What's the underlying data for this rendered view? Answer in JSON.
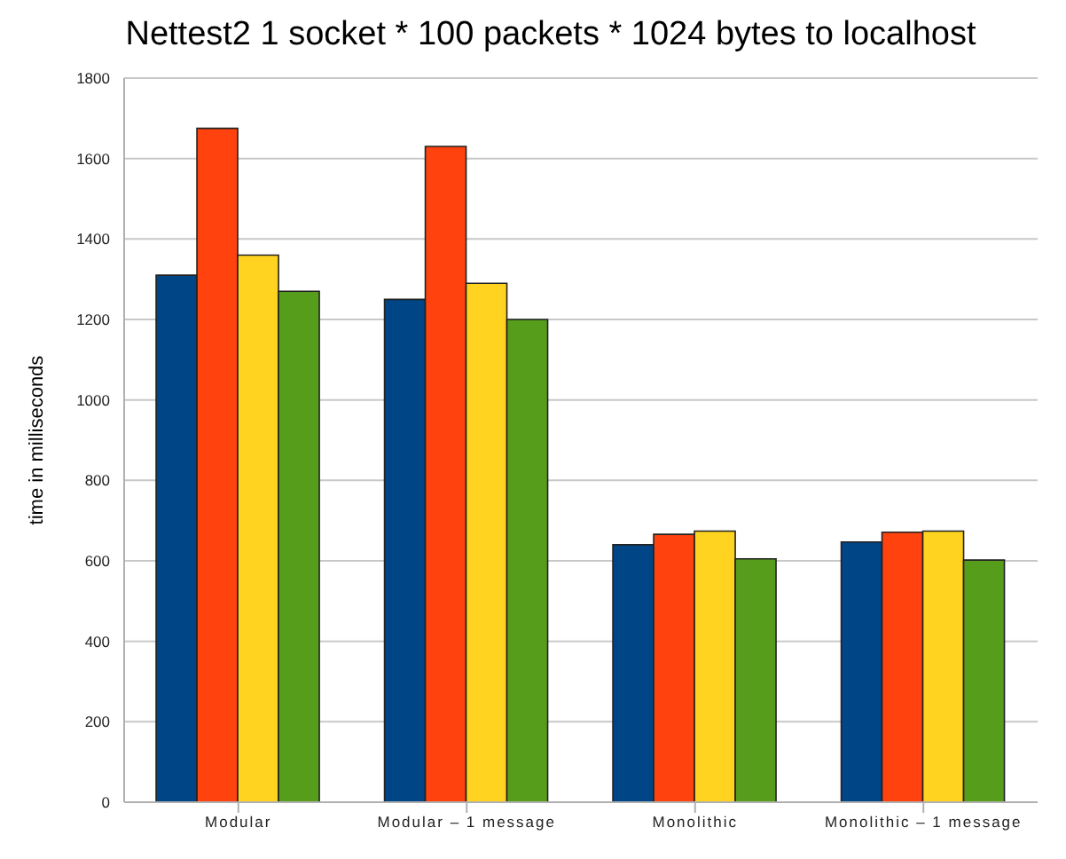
{
  "chart_data": {
    "type": "bar",
    "title": "Nettest2 1 socket * 100 packets * 1024 bytes to localhost",
    "ylabel": "time in milliseconds",
    "categories": [
      "Modular",
      "Modular – 1 message",
      "Monolithic",
      "Monolithic – 1 message"
    ],
    "series": [
      {
        "color": "#004586",
        "values": [
          1310,
          1250,
          640,
          647
        ]
      },
      {
        "color": "#ff420e",
        "values": [
          1675,
          1630,
          666,
          671
        ]
      },
      {
        "color": "#ffd320",
        "values": [
          1360,
          1290,
          674,
          674
        ]
      },
      {
        "color": "#579d1c",
        "values": [
          1270,
          1200,
          605,
          602
        ]
      }
    ],
    "ylim": [
      0,
      1800
    ],
    "yticks": [
      0,
      200,
      400,
      600,
      800,
      1000,
      1200,
      1400,
      1600,
      1800
    ],
    "grid": "y"
  }
}
